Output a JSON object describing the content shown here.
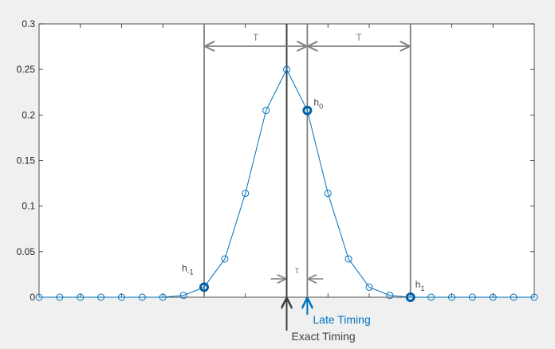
{
  "chart_data": {
    "type": "scatter",
    "title": "",
    "xlabel": "",
    "ylabel": "",
    "xlim": [
      -12,
      12
    ],
    "ylim": [
      0,
      0.3
    ],
    "yticks": [
      0,
      0.05,
      0.1,
      0.15,
      0.2,
      0.25,
      0.3
    ],
    "ytick_labels": [
      "0",
      "0.05",
      "0.1",
      "0.15",
      "0.2",
      "0.25",
      "0.3"
    ],
    "grid": false,
    "series": [
      {
        "x": [
          -12,
          -11,
          -10,
          -9,
          -8,
          -7,
          -6,
          -5,
          -4,
          -3,
          -2,
          -1,
          0,
          1,
          2,
          3,
          4,
          5,
          6,
          7,
          8,
          9,
          10,
          11,
          12
        ],
        "values": [
          0,
          0,
          0,
          0,
          0,
          0,
          0,
          0.002,
          0.011,
          0.042,
          0.114,
          0.205,
          0.25,
          0.205,
          0.114,
          0.042,
          0.011,
          0.002,
          0,
          0,
          0,
          0,
          0,
          0,
          0
        ],
        "color": "#0072bd"
      }
    ],
    "highlighted_points": [
      {
        "label_base": "h",
        "label_sub": "-1",
        "x": -4,
        "y": 0.011
      },
      {
        "label_base": "h",
        "label_sub": "0",
        "x": 1,
        "y": 0.205
      },
      {
        "label_base": "h",
        "label_sub": "1",
        "x": 6,
        "y": 0
      }
    ],
    "vertical_lines": [
      {
        "name": "exact",
        "x": 0,
        "color": "#404040"
      },
      {
        "name": "late",
        "x": 1,
        "color": "#808080"
      },
      {
        "name": "early-symbol",
        "x": -4,
        "color": "#808080"
      },
      {
        "name": "next-symbol",
        "x": 6,
        "color": "#808080"
      }
    ],
    "spans": [
      {
        "label": "T",
        "from": -4,
        "to": 1
      },
      {
        "label": "T",
        "from": 1,
        "to": 6
      }
    ],
    "offset": {
      "label": "τ",
      "from": 0,
      "to": 1
    },
    "annotations": [
      {
        "name": "late-timing",
        "label": "Late Timing",
        "x": 1,
        "color": "#0072bd"
      },
      {
        "name": "exact-timing",
        "label": "Exact Timing",
        "x": 0,
        "color": "#404040"
      }
    ]
  }
}
